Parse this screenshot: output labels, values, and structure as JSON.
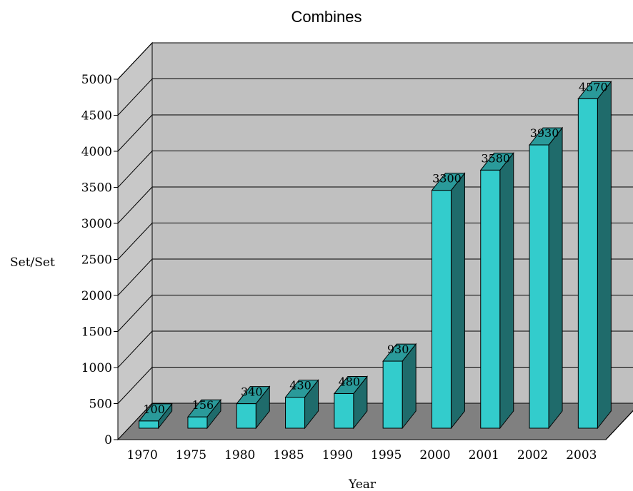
{
  "chart_data": {
    "type": "bar",
    "title": "Combines",
    "xlabel": "Year",
    "ylabel": "Set/Set",
    "categories": [
      "1970",
      "1975",
      "1980",
      "1985",
      "1990",
      "1995",
      "2000",
      "2001",
      "2002",
      "2003"
    ],
    "values": [
      100,
      156,
      340,
      430,
      480,
      930,
      3300,
      3580,
      3930,
      4570
    ],
    "data_labels": [
      "100",
      "156",
      "340",
      "430",
      "480",
      "930",
      "3300",
      "3580",
      "3930",
      "4570"
    ],
    "yticks": [
      "0",
      "500",
      "1000",
      "1500",
      "2000",
      "2500",
      "3000",
      "3500",
      "4000",
      "4500",
      "5000"
    ],
    "ylim": [
      0,
      5000
    ],
    "grid": true,
    "style": "3d-column",
    "colors": {
      "bar_front": "#33cccc",
      "bar_top": "#2a9a9a",
      "bar_side": "#1f6b6b",
      "back_wall": "#c0c0c0",
      "side_wall": "#c8c8c8",
      "floor": "#808080",
      "gridline": "#000000"
    }
  }
}
